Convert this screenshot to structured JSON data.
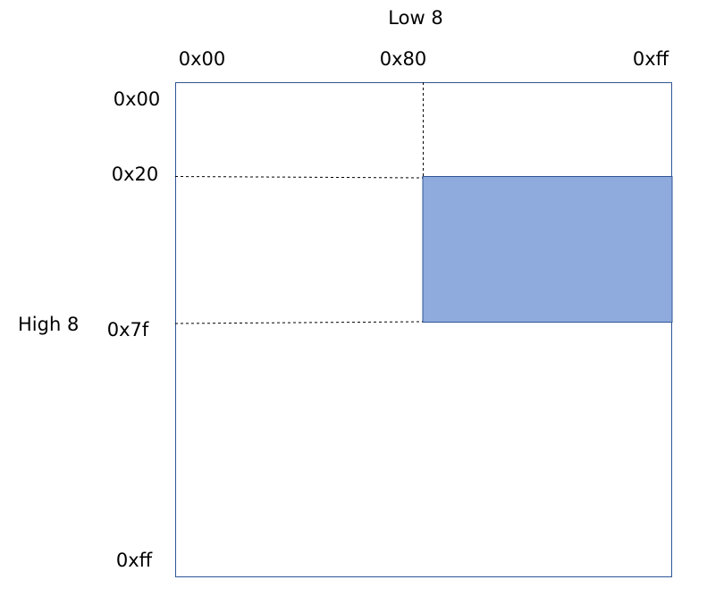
{
  "axes": {
    "top_title": "Low 8",
    "side_title": "High 8"
  },
  "columns": {
    "labels": [
      "0x00",
      "0x80",
      "0xff"
    ]
  },
  "rows": {
    "labels": [
      "0x00",
      "0x20",
      "0x7f",
      "0xff"
    ]
  },
  "highlight": {
    "fill": "#8FAADC",
    "stroke": "#2F5597"
  },
  "frame": {
    "stroke": "#2F5597"
  },
  "guides": {
    "stroke": "#000000"
  }
}
